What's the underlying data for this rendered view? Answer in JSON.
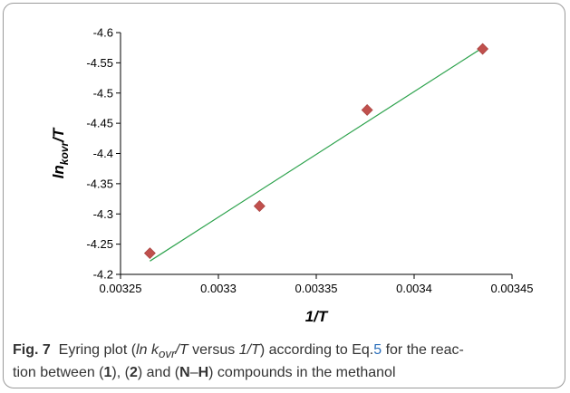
{
  "chart_data": {
    "type": "scatter",
    "xlabel": "1/T",
    "ylabel_main": "ln",
    "ylabel_sub": "kovr",
    "ylabel_tail": "/T",
    "xlim": [
      0.00325,
      0.00345
    ],
    "ylim": [
      -4.6,
      -4.2
    ],
    "x_ticks": [
      "0.00325",
      "0.0033",
      "0.00335",
      "0.0034",
      "0.00345"
    ],
    "y_ticks": [
      "-4.6",
      "-4.55",
      "-4.5",
      "-4.45",
      "-4.4",
      "-4.35",
      "-4.3",
      "-4.25",
      "-4.2"
    ],
    "points": [
      {
        "x": 0.003265,
        "y": -4.235
      },
      {
        "x": 0.003321,
        "y": -4.313
      },
      {
        "x": 0.003376,
        "y": -4.472
      },
      {
        "x": 0.003435,
        "y": -4.573
      }
    ],
    "trendline": {
      "x": [
        0.003265,
        0.003435
      ],
      "y": [
        -4.222,
        -4.575
      ]
    },
    "marker_color": "#c0504d",
    "line_color": "#2ca24c",
    "grid": false
  },
  "caption": {
    "label": "Fig. 7",
    "t1": "Eyring plot (",
    "ln": "ln k",
    "ovr": "ovr",
    "slash_t": "/T",
    "versus": " versus ",
    "inv_t": "1/T",
    "t2": ") according to Eq.",
    "eq": "5",
    "t3": " for the reac-",
    "t4": "tion between (",
    "c1": "1",
    "t5": "), (",
    "c2": "2",
    "t6": ") and (",
    "n": "N",
    "dash": "–",
    "h": "H",
    "t7": ") compounds in the methanol"
  }
}
